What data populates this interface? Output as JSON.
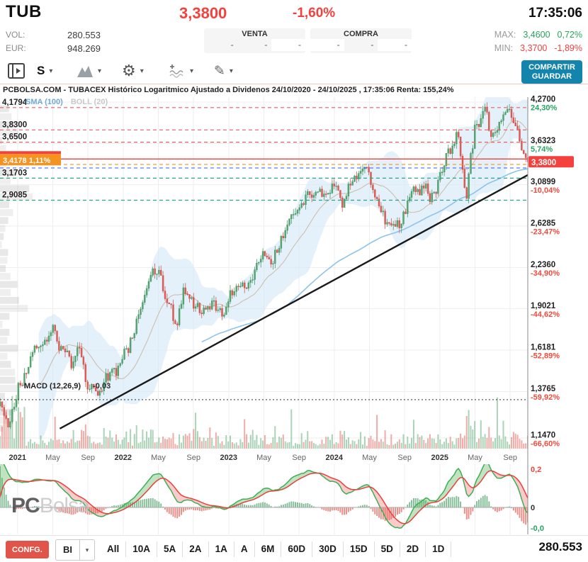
{
  "header": {
    "symbol": "TUB",
    "price": "3,3800",
    "change_pct": "-1,60%",
    "time": "17:35:06",
    "vol_label": "VOL:",
    "vol_value": "280.553",
    "eur_label": "EUR:",
    "eur_value": "948.269",
    "venta_label": "VENTA",
    "compra_label": "COMPRA",
    "dash": "-",
    "max_label": "MAX:",
    "max_value": "3,4600",
    "max_pct": "0,72%",
    "min_label": "MIN:",
    "min_value": "3,3700",
    "min_pct": "-1,89%"
  },
  "toolbar": {
    "interval_label": "S",
    "share_line1": "COMPARTIR",
    "share_line2": "GUARDAR"
  },
  "legend": {
    "sma": "SMA (100)",
    "boll": "BOLL (20)"
  },
  "macd_panel": {
    "label": "MACD (12,26,9)",
    "value": "-0,03"
  },
  "watermark": {
    "bold": "PC",
    "light": "Bolsa"
  },
  "footer": {
    "confg": "CONFG.",
    "interval": "BI",
    "caret": "▾",
    "ranges": [
      "All",
      "10A",
      "5A",
      "2A",
      "1A",
      "A",
      "6M",
      "60D",
      "30D",
      "15D",
      "5D",
      "2D",
      "1D"
    ],
    "volume": "280.553"
  },
  "colors": {
    "up": "#57a771",
    "up_stroke": "#3f8f5c",
    "down": "#e25b52",
    "down_stroke": "#c94a43",
    "band": "#d4e8f7",
    "sma100": "#8ec3ea",
    "boll_mid": "#cbb9a4",
    "red": "#f5413d",
    "green": "#27a35e",
    "orange": "#f6921e",
    "blue_line": "#2c5cf0",
    "accent": "#1385ad",
    "macd_line": "#3caf54",
    "signal_line": "#e8413c"
  },
  "chart_data": {
    "type": "candlestick",
    "timeframe": "weekly",
    "scale": "logarithmic",
    "title": "PCBOLSA.COM - TUBACEX Histórico Logaritmico Ajustado a Dividenos 24/10/2020 - 24/10/2025 , 17:35:06 Renta: 155,24%",
    "x_range": [
      "24/10/2020",
      "24/10/2025"
    ],
    "x_ticks": [
      {
        "m": 2,
        "label": "2021",
        "year": true
      },
      {
        "m": 6,
        "label": "May"
      },
      {
        "m": 10,
        "label": "Sep"
      },
      {
        "m": 14,
        "label": "2022",
        "year": true
      },
      {
        "m": 18,
        "label": "May"
      },
      {
        "m": 22,
        "label": "Sep"
      },
      {
        "m": 26,
        "label": "2023",
        "year": true
      },
      {
        "m": 30,
        "label": "May"
      },
      {
        "m": 34,
        "label": "Sep"
      },
      {
        "m": 38,
        "label": "2024",
        "year": true
      },
      {
        "m": 42,
        "label": "May"
      },
      {
        "m": 46,
        "label": "Sep"
      },
      {
        "m": 50,
        "label": "2025",
        "year": true
      },
      {
        "m": 54,
        "label": "May"
      },
      {
        "m": 58,
        "label": "Sep"
      }
    ],
    "y_axis_right": [
      {
        "value": 4.27,
        "price": "4,2700",
        "pct": "24,30%"
      },
      {
        "value": 3.6323,
        "price": "3,6323",
        "pct": "5,74%"
      },
      {
        "value": 3.0899,
        "price": "3,0899",
        "pct": "-10,04%"
      },
      {
        "value": 2.6285,
        "price": "2,6285",
        "pct": "-23,47%"
      },
      {
        "value": 2.236,
        "price": "2,2360",
        "pct": "-34,90%"
      },
      {
        "value": 1.9021,
        "price": "1,9021",
        "pct": "-44,62%"
      },
      {
        "value": 1.6181,
        "price": "1,6181",
        "pct": "-52,89%"
      },
      {
        "value": 1.3765,
        "price": "1,3765",
        "pct": "-59,92%"
      },
      {
        "value": 1.147,
        "price": "1,1470",
        "pct": "-66,60%"
      }
    ],
    "current": {
      "value": 3.38,
      "label": "3,3800",
      "pct": "-1,60%"
    },
    "left_levels": [
      {
        "value": 4.1794,
        "label": "4,1794",
        "color": "red"
      },
      {
        "value": 3.83,
        "label": "3,8300",
        "color": "red"
      },
      {
        "value": 3.65,
        "label": "3,6500",
        "color": "red"
      },
      {
        "value": 3.1703,
        "label": "3,1703",
        "color": "green"
      },
      {
        "value": 2.9085,
        "label": "2,9085",
        "color": "green"
      }
    ],
    "entry_marker": {
      "value": 3.4178,
      "label": "3,4178  1,11%"
    },
    "extra_lines": [
      {
        "value": 3.345,
        "style": "dashed",
        "color": "orange"
      },
      {
        "value": 3.3,
        "style": "dashed",
        "color": "blue"
      },
      {
        "value": 1.333,
        "style": "dotted",
        "color": "black"
      }
    ],
    "trend_line": {
      "m1": 6.8,
      "p1": 1.19,
      "m2": 60.0,
      "p2": 3.21
    },
    "monthly_closes": [
      1.3,
      1.22,
      1.38,
      1.48,
      1.6,
      1.65,
      1.78,
      1.62,
      1.55,
      1.6,
      1.42,
      1.34,
      1.44,
      1.48,
      1.56,
      1.7,
      1.9,
      2.1,
      2.24,
      1.95,
      1.78,
      2.05,
      1.95,
      1.85,
      1.95,
      1.87,
      1.96,
      2.1,
      2.05,
      2.2,
      2.35,
      2.28,
      2.5,
      2.65,
      2.85,
      2.95,
      3.05,
      2.95,
      3.1,
      2.9,
      3.15,
      3.25,
      3.2,
      2.9,
      2.65,
      2.58,
      2.8,
      3.0,
      3.05,
      2.95,
      3.15,
      3.55,
      3.75,
      2.95,
      3.85,
      4.1,
      3.75,
      4.0,
      4.15,
      3.7,
      3.38
    ],
    "indicators": {
      "sma_period": 100,
      "boll_period": 20
    },
    "macd": {
      "params": [
        12,
        26,
        9
      ],
      "current": -0.03,
      "axis": [
        {
          "label": "0,2",
          "v": 0.2,
          "color": "#e8463c"
        },
        {
          "label": "0",
          "v": 0,
          "color": "#333333"
        },
        {
          "label": "-0,0",
          "v": -0.107,
          "color": "#27a35e"
        }
      ]
    },
    "volume_total": "280.553"
  }
}
